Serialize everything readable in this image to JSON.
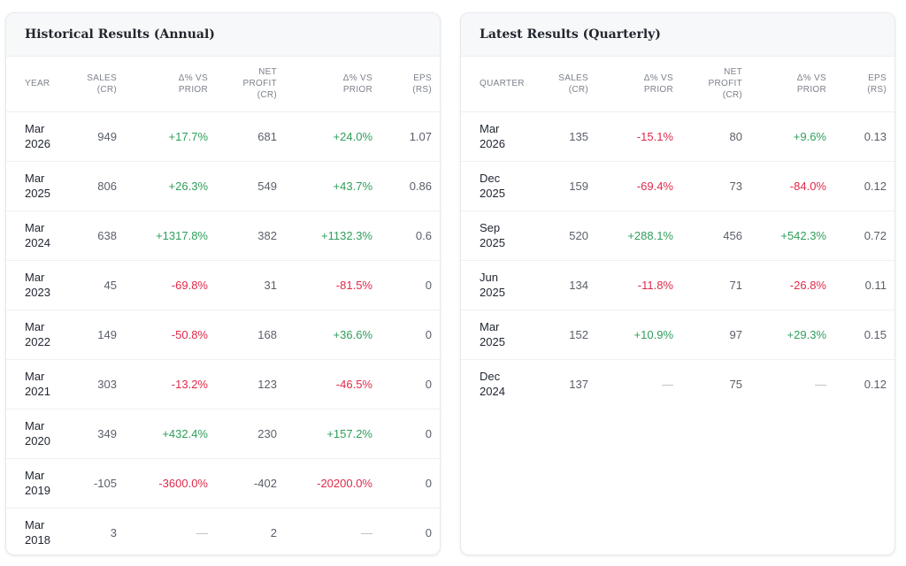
{
  "colors": {
    "positive": "#2f9e5b",
    "negative": "#e0294a"
  },
  "annual": {
    "title": "Historical Results (Annual)",
    "headers": [
      "YEAR",
      "SALES (CR)",
      "Δ% VS PRIOR",
      "NET PROFIT (CR)",
      "Δ% VS PRIOR",
      "EPS (RS)"
    ],
    "rows": [
      [
        "Mar 2026",
        "949",
        "+17.7%",
        "681",
        "+24.0%",
        "1.07"
      ],
      [
        "Mar 2025",
        "806",
        "+26.3%",
        "549",
        "+43.7%",
        "0.86"
      ],
      [
        "Mar 2024",
        "638",
        "+1317.8%",
        "382",
        "+1132.3%",
        "0.6"
      ],
      [
        "Mar 2023",
        "45",
        "-69.8%",
        "31",
        "-81.5%",
        "0"
      ],
      [
        "Mar 2022",
        "149",
        "-50.8%",
        "168",
        "+36.6%",
        "0"
      ],
      [
        "Mar 2021",
        "303",
        "-13.2%",
        "123",
        "-46.5%",
        "0"
      ],
      [
        "Mar 2020",
        "349",
        "+432.4%",
        "230",
        "+157.2%",
        "0"
      ],
      [
        "Mar 2019",
        "-105",
        "-3600.0%",
        "-402",
        "-20200.0%",
        "0"
      ],
      [
        "Mar 2018",
        "3",
        "—",
        "2",
        "—",
        "0"
      ]
    ]
  },
  "quarterly": {
    "title": "Latest Results (Quarterly)",
    "headers": [
      "QUARTER",
      "SALES (CR)",
      "Δ% VS PRIOR",
      "NET PROFIT (CR)",
      "Δ% VS PRIOR",
      "EPS (RS)"
    ],
    "rows": [
      [
        "Mar 2026",
        "135",
        "-15.1%",
        "80",
        "+9.6%",
        "0.13"
      ],
      [
        "Dec 2025",
        "159",
        "-69.4%",
        "73",
        "-84.0%",
        "0.12"
      ],
      [
        "Sep 2025",
        "520",
        "+288.1%",
        "456",
        "+542.3%",
        "0.72"
      ],
      [
        "Jun 2025",
        "134",
        "-11.8%",
        "71",
        "-26.8%",
        "0.11"
      ],
      [
        "Mar 2025",
        "152",
        "+10.9%",
        "97",
        "+29.3%",
        "0.15"
      ],
      [
        "Dec 2024",
        "137",
        "—",
        "75",
        "—",
        "0.12"
      ]
    ]
  }
}
